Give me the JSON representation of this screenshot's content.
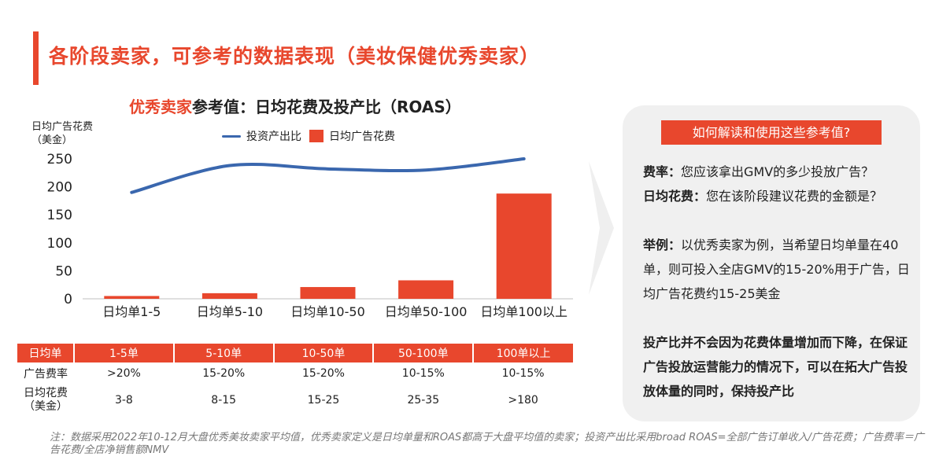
{
  "header": {
    "title": "各阶段卖家，可参考的数据表现（美妆保健优秀卖家）"
  },
  "chart_header": {
    "title_highlight": "优秀卖家",
    "title_rest": "参考值：日均花费及投产比（ROAS）",
    "y_unit_line1": "日均广告花费",
    "y_unit_line2": "（美金）"
  },
  "chart_data": {
    "type": "bar",
    "title": "优秀卖家参考值：日均花费及投产比（ROAS）",
    "ylabel": "日均广告花费（美金）",
    "ylim": [
      0,
      250
    ],
    "yticks": [
      "0",
      "50",
      "100",
      "150",
      "200",
      "250"
    ],
    "categories": [
      "日均单1-5",
      "日均单5-10",
      "日均单10-50",
      "日均单50-100",
      "日均单100以上"
    ],
    "series": [
      {
        "name": "投资产出比",
        "kind": "line",
        "color": "#3a67ae",
        "values": [
          190,
          238,
          232,
          230,
          250
        ]
      },
      {
        "name": "日均广告花费",
        "kind": "bar",
        "color": "#e8472d",
        "values": [
          5,
          10,
          21,
          33,
          188
        ]
      }
    ],
    "legend": "top-center",
    "grid": false
  },
  "table": {
    "headers": [
      "日均单",
      "1-5单",
      "5-10单",
      "10-50单",
      "50-100单",
      "100单以上"
    ],
    "rows": [
      {
        "label": "广告费率",
        "cells": [
          ">20%",
          "15-20%",
          "15-20%",
          "10-15%",
          "10-15%"
        ]
      },
      {
        "label_line1": "日均花费",
        "label_line2": "（美金）",
        "cells": [
          "3-8",
          "8-15",
          "15-25",
          "25-35",
          ">180"
        ]
      }
    ]
  },
  "panel": {
    "header": "如何解读和使用这些参考值?",
    "q1_bold": "费率：",
    "q1_text": "您应该拿出GMV的多少投放广告？",
    "q2_bold": "日均花费：",
    "q2_text": "您在该阶段建议花费的金额是？",
    "example_bold": "举例：",
    "example_text": "以优秀卖家为例，当希望日均单量在40单，则可投入全店GMV的15-20%用于广告，日均广告花费约15-25美金",
    "conclusion": "投产比并不会因为花费体量增加而下降，在保证广告投放运营能力的情况下，可以在拓大广告投放体量的同时，保持投产比"
  },
  "note": "注：数据采用2022年10-12月大盘优秀美妆卖家平均值，优秀卖家定义是日均单量和ROAS都高于大盘平均值的卖家；投资产出比采用broad ROAS=全部广告订单收入/广告花费；广告费率＝广告花费/全店净销售额NMV",
  "colors": {
    "accent": "#e8472d",
    "line": "#3a67ae",
    "panel_bg": "#f0f0f0"
  }
}
